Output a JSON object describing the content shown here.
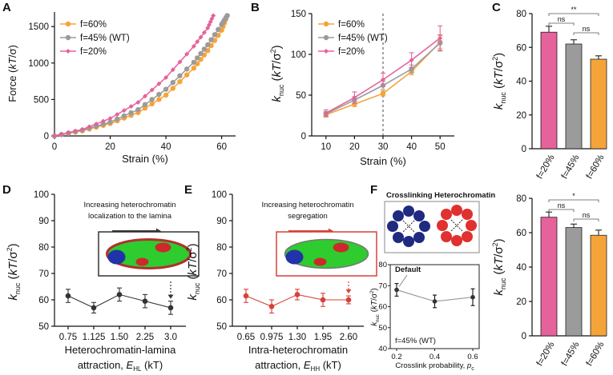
{
  "colors": {
    "f60": "#f5a43a",
    "f45": "#9b9b9b",
    "f20": "#e5629b",
    "axis": "#111111",
    "dark_marker": "#333333",
    "red_marker": "#d9403a"
  },
  "panel_letters": {
    "a": "A",
    "b": "B",
    "c": "C",
    "d": "D",
    "e": "E",
    "f": "F"
  },
  "chart_data": [
    {
      "id": "A",
      "type": "line",
      "xlabel": "Strain (%)",
      "ylabel": "Force (kT/σ)",
      "xlim": [
        0,
        65
      ],
      "ylim": [
        0,
        1700
      ],
      "xticks": [
        "0",
        "20",
        "40",
        "60"
      ],
      "yticks": [
        "0",
        "500",
        "1000",
        "1500"
      ],
      "legend": [
        "f=60%",
        "f=45% (WT)",
        "f=20%"
      ],
      "series": [
        {
          "name": "f=60%",
          "x": [
            0,
            10,
            20,
            30,
            40,
            50,
            55,
            60,
            62
          ],
          "y": [
            0,
            70,
            170,
            320,
            560,
            930,
            1170,
            1450,
            1650
          ]
        },
        {
          "name": "f=45% (WT)",
          "x": [
            0,
            10,
            20,
            30,
            40,
            50,
            55,
            60,
            62
          ],
          "y": [
            0,
            80,
            190,
            360,
            640,
            1010,
            1250,
            1530,
            1650
          ]
        },
        {
          "name": "f=20%",
          "x": [
            0,
            10,
            20,
            30,
            40,
            50,
            55,
            57
          ],
          "y": [
            0,
            90,
            240,
            460,
            800,
            1230,
            1480,
            1650
          ]
        }
      ]
    },
    {
      "id": "B",
      "type": "line",
      "xlabel": "Strain (%)",
      "ylabel": "k_nuc (kT/σ²)",
      "xlim": [
        5,
        55
      ],
      "ylim": [
        0,
        150
      ],
      "xticks": [
        "10",
        "20",
        "30",
        "40",
        "50"
      ],
      "yticks": [
        "0",
        "50",
        "100",
        "150"
      ],
      "legend": [
        "f=60%",
        "f=45% (WT)",
        "f=20%"
      ],
      "vline_at": 30,
      "series": [
        {
          "name": "f=60%",
          "x": [
            10,
            20,
            30,
            40,
            50
          ],
          "y": [
            26,
            39,
            52,
            79,
            115
          ],
          "err": [
            3,
            3,
            3,
            4,
            8
          ]
        },
        {
          "name": "f=45% (WT)",
          "x": [
            10,
            20,
            30,
            40,
            50
          ],
          "y": [
            27,
            44,
            62,
            82,
            114
          ],
          "err": [
            3,
            4,
            5,
            5,
            10
          ]
        },
        {
          "name": "f=20%",
          "x": [
            10,
            20,
            30,
            40,
            50
          ],
          "y": [
            28,
            47,
            69,
            93,
            120
          ],
          "err": [
            4,
            7,
            8,
            9,
            15
          ]
        }
      ]
    },
    {
      "id": "C",
      "type": "bar",
      "ylabel": "k_nuc (kT/σ²)",
      "ylim": [
        0,
        80
      ],
      "yticks": [
        "0",
        "20",
        "40",
        "60",
        "80"
      ],
      "categories": [
        "f=20%",
        "f=45%",
        "f=60%"
      ],
      "values": [
        69,
        62,
        53
      ],
      "err": [
        3.5,
        2.5,
        2
      ],
      "significance": [
        {
          "pair": "1-2",
          "label": "ns"
        },
        {
          "pair": "1-3",
          "label": "**"
        },
        {
          "pair": "2-3",
          "label": "ns"
        }
      ]
    },
    {
      "id": "D",
      "type": "line",
      "xlabel": "Heterochromatin-lamina",
      "xlabel2": "attraction,",
      "xlabel2_sym": "E",
      "xlabel2_sub": "HL",
      "xlabel2_unit": "(kT)",
      "ylabel": "k_nuc (kT/σ²)",
      "ylim": [
        50,
        100
      ],
      "xticks": [
        "0.75",
        "1.125",
        "1.50",
        "2.25",
        "3.0"
      ],
      "yticks": [
        "50",
        "60",
        "70",
        "80",
        "90",
        "100"
      ],
      "values": [
        61.5,
        57,
        62,
        59.5,
        57
      ],
      "err": [
        2.5,
        2,
        2.5,
        2.5,
        2.5
      ],
      "annotation": [
        "Increasing heterochromatin",
        "localization to the lamina"
      ]
    },
    {
      "id": "E",
      "type": "line",
      "xlabel": "Intra-heterochromatin",
      "xlabel2": "attraction,",
      "xlabel2_sym": "E",
      "xlabel2_sub": "HH",
      "xlabel2_unit": "(kT)",
      "ylabel": "k_nuc (kT/σ²)",
      "ylim": [
        50,
        100
      ],
      "xticks": [
        "0.65",
        "0.975",
        "1.30",
        "1.95",
        "2.60"
      ],
      "yticks": [
        "50",
        "60",
        "70",
        "80",
        "90",
        "100"
      ],
      "values": [
        61.5,
        57.5,
        62,
        60,
        60
      ],
      "err": [
        2.5,
        2.5,
        2,
        2.5,
        1.5
      ],
      "annotation": [
        "Increasing heterochromatin",
        "segregation"
      ]
    },
    {
      "id": "F_inset",
      "type": "line",
      "xlabel": "Crosslink probability,",
      "xlabel_sym": "p",
      "xlabel_sub": "c",
      "ylabel": "k_nuc (kT/σ²)",
      "xlim": [
        0.2,
        0.6
      ],
      "ylim": [
        40,
        80
      ],
      "xticks": [
        "0.2",
        "0.4",
        "0.6"
      ],
      "yticks": [
        "40",
        "50",
        "60",
        "70",
        "80"
      ],
      "x": [
        0.2,
        0.4,
        0.6
      ],
      "values": [
        68,
        62.5,
        64.5
      ],
      "err": [
        3,
        3,
        4
      ],
      "title": "Crosslinking Heterochromatin",
      "default_label": "Default",
      "inner_label": "f=45% (WT)"
    },
    {
      "id": "F_bar",
      "type": "bar",
      "ylabel": "k_nuc (kT/σ²)",
      "ylim": [
        0,
        80
      ],
      "yticks": [
        "0",
        "20",
        "40",
        "60",
        "80"
      ],
      "categories": [
        "f=20%",
        "f=45%",
        "f=60%"
      ],
      "values": [
        69,
        63,
        58.5
      ],
      "err": [
        3,
        2,
        3
      ],
      "significance": [
        {
          "pair": "1-2",
          "label": "ns"
        },
        {
          "pair": "1-3",
          "label": "*"
        },
        {
          "pair": "2-3",
          "label": "ns"
        }
      ]
    }
  ]
}
